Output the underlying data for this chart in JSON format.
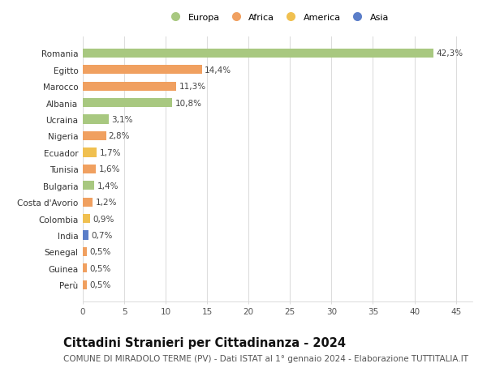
{
  "categories": [
    "Perù",
    "Guinea",
    "Senegal",
    "India",
    "Colombia",
    "Costa d'Avorio",
    "Bulgaria",
    "Tunisia",
    "Ecuador",
    "Nigeria",
    "Ucraina",
    "Albania",
    "Marocco",
    "Egitto",
    "Romania"
  ],
  "values": [
    0.5,
    0.5,
    0.5,
    0.7,
    0.9,
    1.2,
    1.4,
    1.6,
    1.7,
    2.8,
    3.1,
    10.8,
    11.3,
    14.4,
    42.3
  ],
  "colors": [
    "#f0a060",
    "#f0a060",
    "#f0a060",
    "#5b7ec9",
    "#f0c050",
    "#f0a060",
    "#a8c880",
    "#f0a060",
    "#f0c050",
    "#f0a060",
    "#a8c880",
    "#a8c880",
    "#f0a060",
    "#f0a060",
    "#a8c880"
  ],
  "labels": [
    "0,5%",
    "0,5%",
    "0,5%",
    "0,7%",
    "0,9%",
    "1,2%",
    "1,4%",
    "1,6%",
    "1,7%",
    "2,8%",
    "3,1%",
    "10,8%",
    "11,3%",
    "14,4%",
    "42,3%"
  ],
  "xlim": [
    0,
    47
  ],
  "xticks": [
    0,
    5,
    10,
    15,
    20,
    25,
    30,
    35,
    40,
    45
  ],
  "title": "Cittadini Stranieri per Cittadinanza - 2024",
  "subtitle": "COMUNE DI MIRADOLO TERME (PV) - Dati ISTAT al 1° gennaio 2024 - Elaborazione TUTTITALIA.IT",
  "legend_labels": [
    "Europa",
    "Africa",
    "America",
    "Asia"
  ],
  "legend_colors": [
    "#a8c880",
    "#f0a060",
    "#f0c050",
    "#5b7ec9"
  ],
  "bar_height": 0.55,
  "background_color": "#ffffff",
  "grid_color": "#dddddd",
  "title_fontsize": 10.5,
  "subtitle_fontsize": 7.5,
  "label_fontsize": 7.5,
  "tick_fontsize": 7.5
}
